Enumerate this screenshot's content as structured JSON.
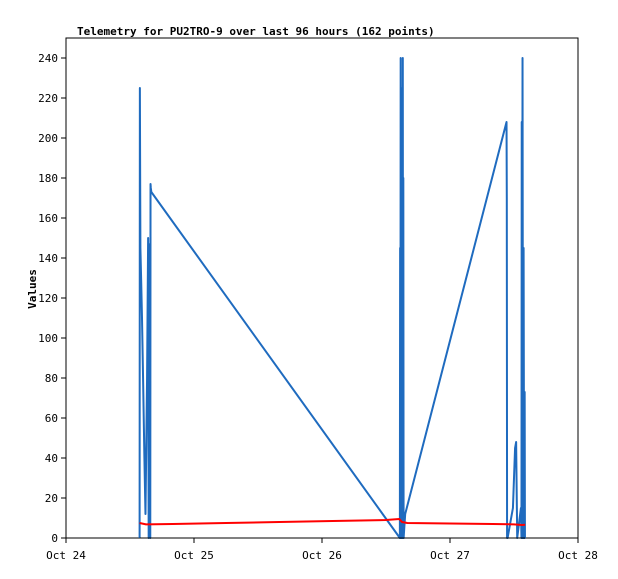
{
  "chart_data": {
    "type": "line",
    "title": "Telemetry for PU2TRO-9 over last 96 hours (162 points)",
    "xlabel": "",
    "ylabel": "Values",
    "x_unit": "hours since Oct 24 00:00",
    "xlim": [
      0,
      96
    ],
    "ylim": [
      0,
      250
    ],
    "x_tick_labels": [
      "Oct 24",
      "Oct 25",
      "Oct 26",
      "Oct 27",
      "Oct 28"
    ],
    "x_tick_values": [
      0,
      24,
      48,
      72,
      96
    ],
    "y_ticks": [
      0,
      20,
      40,
      60,
      80,
      100,
      120,
      140,
      160,
      180,
      200,
      220,
      240
    ],
    "grid": false,
    "legend": "none",
    "series": [
      {
        "color": "#1f6bbf",
        "x": [
          13.8,
          13.85,
          13.95,
          14.1,
          14.25,
          14.45,
          14.7,
          14.9,
          15.2,
          15.4,
          15.5,
          15.6,
          15.75,
          15.8,
          15.85,
          15.9,
          16.0,
          62.6,
          62.65,
          62.7,
          62.75,
          62.8,
          62.85,
          62.9,
          62.95,
          63.0,
          63.05,
          63.1,
          63.15,
          63.2,
          63.25,
          63.3,
          63.35,
          63.4,
          63.45,
          63.5,
          63.55,
          63.6,
          82.6,
          82.65,
          82.7,
          82.75,
          82.8,
          83.8,
          84.0,
          84.2,
          84.4,
          84.6,
          85.3,
          85.4,
          85.45,
          85.5,
          85.6,
          85.7,
          85.8,
          85.9,
          86.0,
          86.05,
          86.1
        ],
        "values": [
          0,
          225,
          145,
          128,
          110,
          80,
          40,
          12,
          80,
          150,
          0,
          100,
          147,
          0,
          177,
          175,
          173,
          0,
          145,
          0,
          240,
          0,
          178,
          0,
          145,
          0,
          225,
          0,
          240,
          0,
          180,
          0,
          2,
          4,
          6,
          8,
          10,
          12,
          208,
          170,
          0,
          0,
          0,
          15,
          30,
          45,
          48,
          0,
          15,
          0,
          208,
          0,
          240,
          0,
          145,
          0,
          73,
          0,
          0
        ]
      },
      {
        "color": "#ff0000",
        "x": [
          13.8,
          15.0,
          20.0,
          30.0,
          40.0,
          50.0,
          60.0,
          62.5,
          63.0,
          64.0,
          70.0,
          80.0,
          84.0,
          85.5,
          86.1
        ],
        "values": [
          7.5,
          6.8,
          7.0,
          7.5,
          8.0,
          8.5,
          9.0,
          9.5,
          8.0,
          7.5,
          7.3,
          7.0,
          6.8,
          6.5,
          6.6
        ]
      },
      {
        "color": "#000000",
        "x": [
          13.8,
          86.1
        ],
        "values": [
          0,
          0
        ]
      }
    ]
  }
}
